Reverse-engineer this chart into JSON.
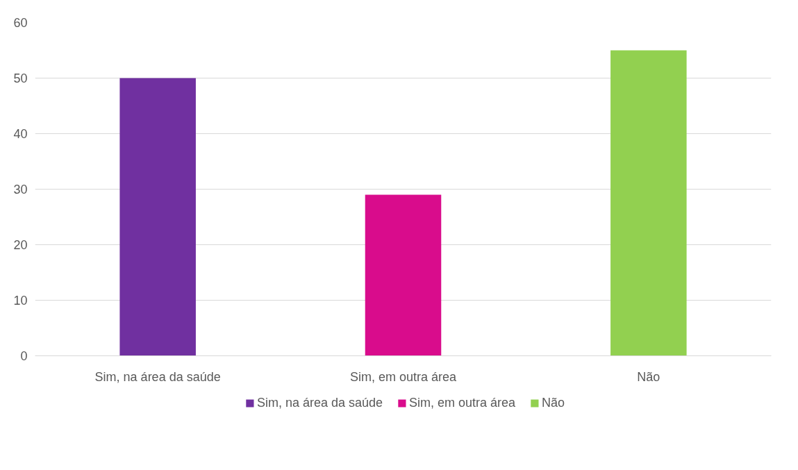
{
  "chart_data": {
    "type": "bar",
    "categories": [
      "Sim, na área da saúde",
      "Sim, em outra área",
      "Não"
    ],
    "series": [
      {
        "name": "Sim, na área da saúde",
        "color": "#7030a0",
        "values": [
          50,
          null,
          null
        ]
      },
      {
        "name": "Sim, em outra área",
        "color": "#d90c8c",
        "values": [
          null,
          29,
          null
        ]
      },
      {
        "name": "Não",
        "color": "#92d050",
        "values": [
          null,
          null,
          55
        ]
      }
    ],
    "ylim": [
      0,
      60
    ],
    "yticks": [
      0,
      10,
      20,
      30,
      40,
      50,
      60
    ],
    "grid": "y",
    "legend": "bottom"
  }
}
